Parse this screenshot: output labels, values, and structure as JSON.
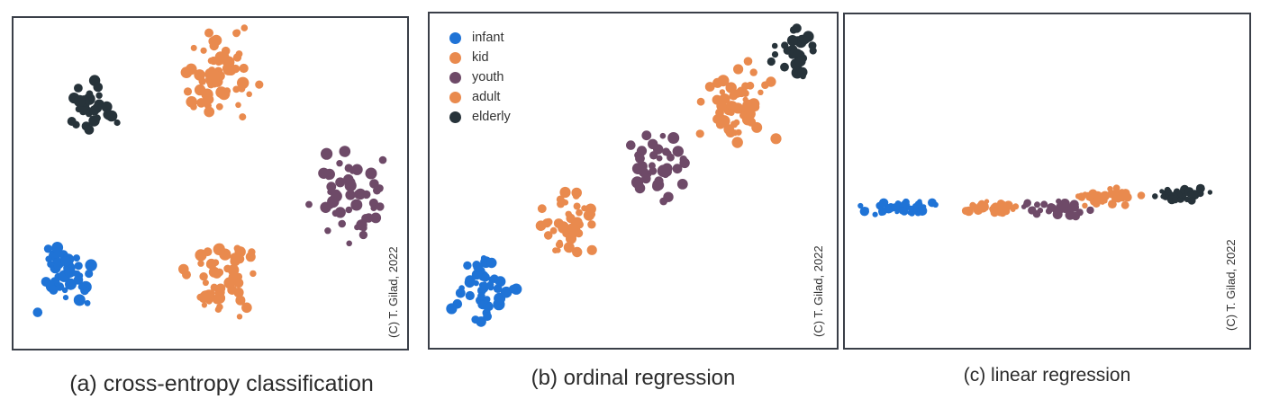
{
  "colors": {
    "infant": "#1f73d6",
    "kid": "#e98a4e",
    "youth": "#6e4a68",
    "adult": "#e98a4e",
    "elderly": "#27333a"
  },
  "legend": [
    "infant",
    "kid",
    "youth",
    "adult",
    "elderly"
  ],
  "watermark": "(C) T. Gilad, 2022",
  "chart_data": [
    {
      "type": "scatter",
      "title": "(a) cross-entropy classification",
      "grid": false,
      "axes": "hidden",
      "clusters": [
        {
          "name": "infant",
          "center": [
            0.13,
            0.22
          ],
          "spread": [
            0.055,
            0.085
          ],
          "count": 40
        },
        {
          "name": "kid",
          "center": [
            0.53,
            0.2
          ],
          "spread": [
            0.075,
            0.1
          ],
          "count": 55
        },
        {
          "name": "youth",
          "center": [
            0.86,
            0.46
          ],
          "spread": [
            0.085,
            0.11
          ],
          "count": 50
        },
        {
          "name": "adult",
          "center": [
            0.52,
            0.83
          ],
          "spread": [
            0.085,
            0.11
          ],
          "count": 65
        },
        {
          "name": "elderly",
          "center": [
            0.19,
            0.72
          ],
          "spread": [
            0.055,
            0.07
          ],
          "count": 30
        }
      ]
    },
    {
      "type": "scatter",
      "title": "(b) ordinal regression",
      "grid": false,
      "axes": "hidden",
      "legend_position": "top-left",
      "clusters": [
        {
          "name": "infant",
          "center": [
            0.13,
            0.17
          ],
          "spread": [
            0.07,
            0.09
          ],
          "count": 45
        },
        {
          "name": "kid",
          "center": [
            0.34,
            0.38
          ],
          "spread": [
            0.065,
            0.09
          ],
          "count": 45
        },
        {
          "name": "youth",
          "center": [
            0.56,
            0.54
          ],
          "spread": [
            0.065,
            0.09
          ],
          "count": 40
        },
        {
          "name": "adult",
          "center": [
            0.76,
            0.72
          ],
          "spread": [
            0.075,
            0.1
          ],
          "count": 60
        },
        {
          "name": "elderly",
          "center": [
            0.9,
            0.9
          ],
          "spread": [
            0.055,
            0.075
          ],
          "count": 30
        }
      ]
    },
    {
      "type": "scatter",
      "title": "(c) linear regression",
      "grid": false,
      "axes": "hidden",
      "clusters": [
        {
          "name": "infant",
          "center": [
            0.13,
            0.42
          ],
          "spread": [
            0.08,
            0.02
          ],
          "count": 45
        },
        {
          "name": "kid",
          "center": [
            0.36,
            0.42
          ],
          "spread": [
            0.06,
            0.02
          ],
          "count": 35
        },
        {
          "name": "youth",
          "center": [
            0.52,
            0.42
          ],
          "spread": [
            0.07,
            0.02
          ],
          "count": 40
        },
        {
          "name": "adult",
          "center": [
            0.65,
            0.45
          ],
          "spread": [
            0.07,
            0.03
          ],
          "count": 40
        },
        {
          "name": "elderly",
          "center": [
            0.82,
            0.46
          ],
          "spread": [
            0.07,
            0.02
          ],
          "count": 30
        }
      ]
    }
  ]
}
